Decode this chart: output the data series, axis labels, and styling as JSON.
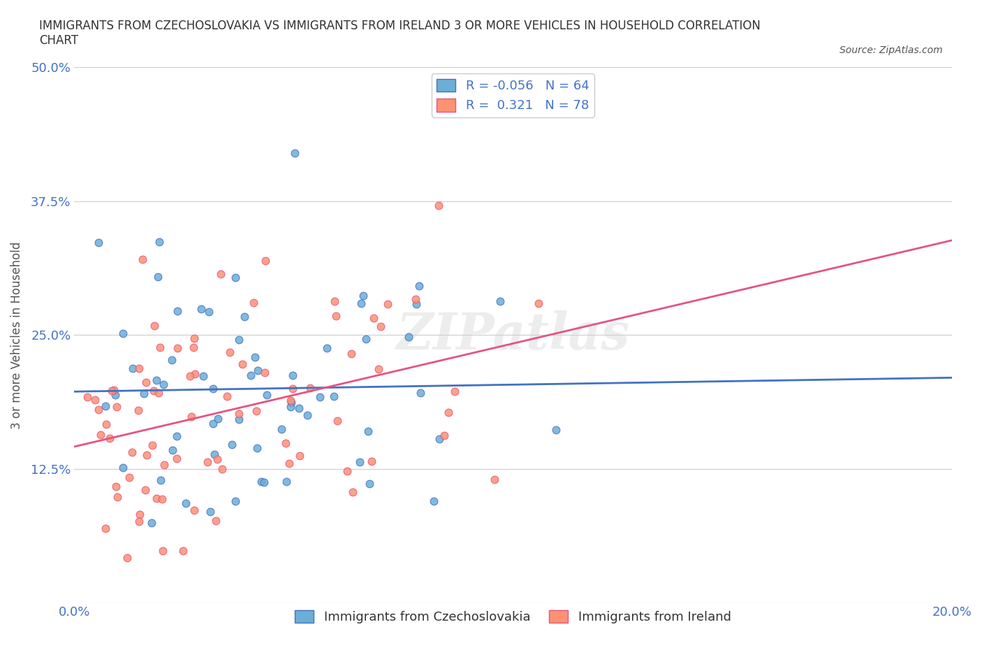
{
  "title": "IMMIGRANTS FROM CZECHOSLOVAKIA VS IMMIGRANTS FROM IRELAND 3 OR MORE VEHICLES IN HOUSEHOLD CORRELATION\nCHART",
  "source_text": "Source: ZipAtlas.com",
  "xlabel": "",
  "ylabel": "3 or more Vehicles in Household",
  "legend_label_1": "Immigrants from Czechoslovakia",
  "legend_label_2": "Immigrants from Ireland",
  "R1": -0.056,
  "N1": 64,
  "R2": 0.321,
  "N2": 78,
  "color1": "#6baed6",
  "color2": "#fc9272",
  "trend_color1": "#4472c4",
  "trend_color2": "#e75480",
  "xlim": [
    0.0,
    0.2
  ],
  "ylim": [
    0.0,
    0.5
  ],
  "xticks": [
    0.0,
    0.05,
    0.1,
    0.15,
    0.2
  ],
  "yticks": [
    0.0,
    0.125,
    0.25,
    0.375,
    0.5
  ],
  "xticklabels": [
    "0.0%",
    "",
    "",
    "",
    "20.0%"
  ],
  "yticklabels": [
    "",
    "12.5%",
    "25.0%",
    "37.5%",
    "50.0%"
  ],
  "background_color": "#ffffff",
  "watermark": "ZIPatlas",
  "seed1": 42,
  "seed2": 99
}
